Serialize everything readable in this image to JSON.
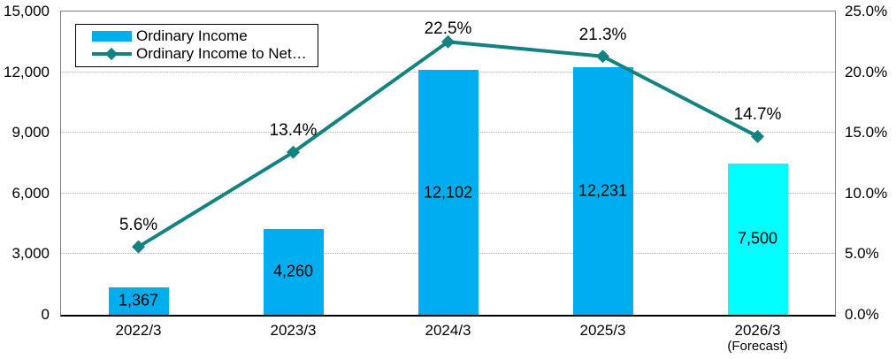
{
  "chart_data": {
    "type": "combo-bar-line",
    "categories": [
      {
        "lines": [
          "2022/3"
        ]
      },
      {
        "lines": [
          "2023/3"
        ]
      },
      {
        "lines": [
          "2024/3"
        ]
      },
      {
        "lines": [
          "2025/3"
        ]
      },
      {
        "lines": [
          "2026/3",
          "(Forecast)"
        ]
      }
    ],
    "series": [
      {
        "name": "Ordinary Income",
        "type": "bar",
        "axis": "left",
        "values": [
          1367,
          4260,
          12102,
          12231,
          7500
        ],
        "value_labels": [
          "1,367",
          "4,260",
          "12,102",
          "12,231",
          "7,500"
        ],
        "bar_colors": [
          "#00AEEF",
          "#00AEEF",
          "#00AEEF",
          "#00AEEF",
          "#00FFFF"
        ]
      },
      {
        "name": "Ordinary Income to Net…",
        "type": "line",
        "axis": "right",
        "values": [
          5.6,
          13.4,
          22.5,
          21.3,
          14.7
        ],
        "value_labels": [
          "5.6%",
          "13.4%",
          "22.5%",
          "21.3%",
          "14.7%"
        ],
        "color": "#148281",
        "marker": "diamond"
      }
    ],
    "left_axis": {
      "min": 0,
      "max": 15000,
      "step": 3000,
      "tick_labels": [
        "15,000",
        "12,000",
        "9,000",
        "6,000",
        "3,000",
        "0"
      ]
    },
    "right_axis": {
      "min": 0,
      "max": 25,
      "step": 5,
      "tick_labels": [
        "25.0%",
        "20.0%",
        "15.0%",
        "10.0%",
        "5.0%",
        "0.0%"
      ]
    },
    "legend": {
      "position": "top-left",
      "items": [
        "Ordinary Income",
        "Ordinary Income to Net…"
      ]
    },
    "grid": true
  },
  "colors": {
    "bar": "#00AEEF",
    "bar_forecast": "#00FFFF",
    "line": "#148281",
    "gridline": "#b3b3b3",
    "plot_border": "#808080",
    "axis_line": "#000000"
  }
}
